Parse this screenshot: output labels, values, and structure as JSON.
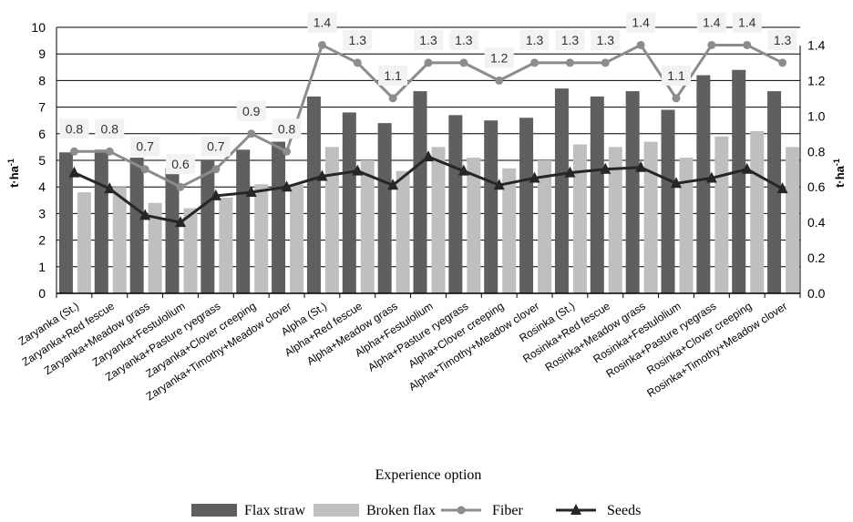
{
  "chart_data": {
    "type": "bar",
    "title": "",
    "xlabel": "Experience option",
    "ylabel_left": "t·ha",
    "ylabel_right": "t·ha",
    "ylabel_superscript": "-1",
    "ylim_left": [
      0,
      10
    ],
    "ylim_right": [
      0,
      1.5
    ],
    "yticks_left": [
      "0",
      "1",
      "2",
      "3",
      "4",
      "5",
      "6",
      "7",
      "8",
      "9",
      "10"
    ],
    "yticks_right": [
      "0.0",
      "0.2",
      "0.4",
      "0.6",
      "0.8",
      "1.0",
      "1.2",
      "1.4"
    ],
    "grid": true,
    "legend_position": "bottom",
    "categories": [
      "Zaryanka (St.)",
      "Zaryanka+Red fescue",
      "Zaryanka+Meadow grass",
      "Zaryanka+Festulolium",
      "Zaryanka+Pasture ryegrass",
      "Zaryanka+Clover creeping",
      "Zaryanka+Timothy+Meadow clover",
      "Alpha (St.)",
      "Alpha+Red fescue",
      "Alpha+Meadow grass",
      "Alpha+Festulolium",
      "Alpha+Pasture ryegrass",
      "Alpha+Clover creeping",
      "Alpha+Timothy+Meadow clover",
      "Rosinka (St.)",
      "Rosinka+Red fescue",
      "Rosinka+Meadow grass",
      "Rosinka+Festulolium",
      "Rosinka+Pasture ryegrass",
      "Rosinka+Clover creeping",
      "Rosinka+Timothy+Meadow clover"
    ],
    "series": [
      {
        "name": "Flax straw",
        "type": "bar",
        "axis": "left",
        "color": "#5f5f5f",
        "values": [
          5.3,
          5.4,
          5.1,
          4.7,
          5.0,
          5.4,
          5.7,
          7.4,
          6.8,
          6.4,
          7.6,
          6.7,
          6.5,
          6.6,
          7.7,
          7.4,
          7.6,
          6.9,
          8.2,
          8.4,
          7.6
        ]
      },
      {
        "name": "Broken flax",
        "type": "bar",
        "axis": "left",
        "color": "#bfbfbf",
        "values": [
          3.8,
          4.0,
          3.4,
          3.2,
          3.6,
          4.1,
          4.1,
          5.5,
          5.0,
          4.6,
          5.5,
          5.1,
          4.7,
          5.0,
          5.6,
          5.5,
          5.7,
          5.1,
          5.9,
          6.1,
          5.5
        ]
      },
      {
        "name": "Fiber",
        "type": "line",
        "axis": "right",
        "color": "#8c8c8c",
        "values": [
          0.8,
          0.8,
          0.7,
          0.6,
          0.7,
          0.9,
          0.8,
          1.4,
          1.3,
          1.1,
          1.3,
          1.3,
          1.2,
          1.3,
          1.3,
          1.3,
          1.4,
          1.1,
          1.4,
          1.4,
          1.3
        ]
      },
      {
        "name": "Seeds",
        "type": "line",
        "axis": "right",
        "color": "#262626",
        "values": [
          0.68,
          0.59,
          0.44,
          0.4,
          0.55,
          0.57,
          0.6,
          0.66,
          0.69,
          0.61,
          0.77,
          0.69,
          0.61,
          0.65,
          0.68,
          0.7,
          0.71,
          0.62,
          0.65,
          0.7,
          0.59
        ]
      }
    ]
  }
}
